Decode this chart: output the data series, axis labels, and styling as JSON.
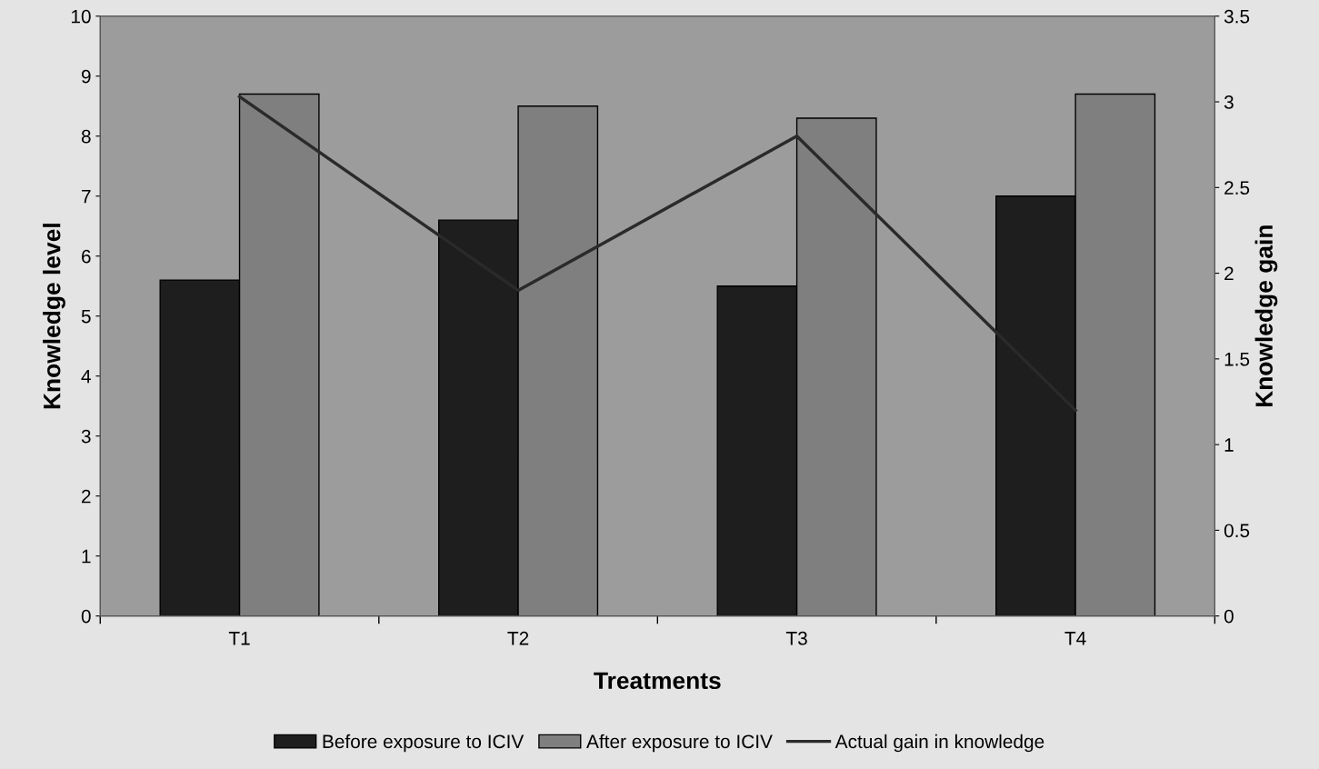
{
  "chart_data": {
    "type": "bar",
    "xlabel": "Treatments",
    "ylabel": "Knowledge level",
    "y2label": "Knowledge gain",
    "categories": [
      "T1",
      "T2",
      "T3",
      "T4"
    ],
    "series": [
      {
        "name": "Before exposure to ICIV",
        "color": "#1e1e1e",
        "values": [
          5.6,
          6.6,
          5.5,
          7.0
        ]
      },
      {
        "name": "After exposure to ICIV",
        "color": "#7f7f7f",
        "values": [
          8.7,
          8.5,
          8.3,
          8.7
        ]
      },
      {
        "name": "Actual gain in knowledge",
        "type": "line",
        "axis": "y2",
        "color": "#2a2a2a",
        "values": [
          3.03,
          1.9,
          2.8,
          1.2
        ]
      }
    ],
    "ylim": [
      0,
      10
    ],
    "yticks": [
      0,
      1,
      2,
      3,
      4,
      5,
      6,
      7,
      8,
      9,
      10
    ],
    "y2lim": [
      0,
      3.5
    ],
    "y2ticks": [
      0,
      0.5,
      1,
      1.5,
      2,
      2.5,
      3,
      3.5
    ],
    "grid": false,
    "legend": "bottom"
  }
}
